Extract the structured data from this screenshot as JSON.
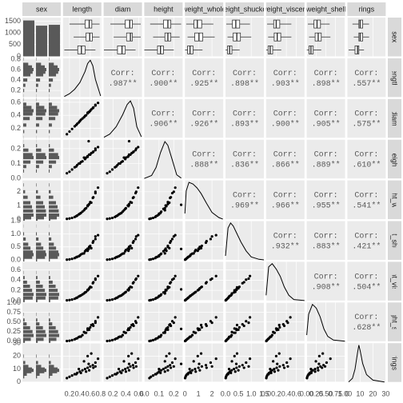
{
  "chart_data": {
    "type": "pairs",
    "variables": [
      "sex",
      "length",
      "diam",
      "height",
      "weight_whole",
      "weight_shucked",
      "weight_viscera",
      "weight_shell",
      "rings"
    ],
    "corr_label": "Corr:",
    "sex_counts": [
      1528,
      1307,
      1342
    ],
    "sex_ylim": [
      0,
      1650
    ],
    "sex_yticks": [
      0,
      500,
      1000,
      1500
    ],
    "correlations": [
      [
        0.987,
        0.9,
        0.925,
        0.898,
        0.903,
        0.898,
        0.557
      ],
      [
        0.906,
        0.926,
        0.893,
        0.9,
        0.905,
        0.575
      ],
      [
        0.888,
        0.836,
        0.866,
        0.889,
        0.61
      ],
      [
        0.969,
        0.966,
        0.955,
        0.541
      ],
      [
        0.932,
        0.883,
        0.421
      ],
      [
        0.908,
        0.504
      ],
      [
        0.628
      ]
    ],
    "correlation_labels": [
      [
        ".987**",
        ".900**",
        ".925**",
        ".898**",
        ".903**",
        ".898**",
        ".557**"
      ],
      [
        ".906**",
        ".926**",
        ".893**",
        ".900**",
        ".905**",
        ".575**"
      ],
      [
        ".888**",
        ".836**",
        ".866**",
        ".889**",
        ".610**"
      ],
      [
        ".969**",
        ".966**",
        ".955**",
        ".541**"
      ],
      [
        ".932**",
        ".883**",
        ".421**"
      ],
      [
        ".908**",
        ".504**"
      ],
      [
        ".628**"
      ]
    ],
    "numeric": [
      {
        "lim": [
          0.075,
          0.815
        ],
        "ticks": [
          0.2,
          0.4,
          0.6,
          0.8
        ],
        "boxes": [
          [
            0.2,
            0.5,
            0.58,
            0.63,
            0.78
          ],
          [
            0.28,
            0.52,
            0.59,
            0.64,
            0.78
          ],
          [
            0.1,
            0.36,
            0.43,
            0.5,
            0.7
          ]
        ],
        "density_x": [
          0.1,
          0.2,
          0.3,
          0.4,
          0.5,
          0.55,
          0.6,
          0.65,
          0.7,
          0.8
        ],
        "density_y": [
          0.05,
          0.3,
          0.7,
          1.3,
          2.3,
          3.0,
          3.3,
          2.8,
          1.6,
          0.1
        ]
      },
      {
        "lim": [
          0.055,
          0.65
        ],
        "ticks": [
          0.2,
          0.4,
          0.6
        ],
        "boxes": [
          [
            0.16,
            0.39,
            0.46,
            0.5,
            0.63
          ],
          [
            0.21,
            0.41,
            0.47,
            0.5,
            0.63
          ],
          [
            0.06,
            0.27,
            0.34,
            0.39,
            0.55
          ]
        ],
        "density_x": [
          0.06,
          0.15,
          0.25,
          0.35,
          0.42,
          0.47,
          0.52,
          0.57,
          0.64
        ],
        "density_y": [
          0.05,
          0.4,
          1.2,
          2.5,
          3.6,
          4.0,
          3.2,
          1.2,
          0.1
        ]
      },
      {
        "lim": [
          0,
          0.26
        ],
        "ticks": [
          {
            "value": 0,
            "label": "0.0"
          },
          0.1,
          0.2
        ],
        "boxes": [
          [
            0.04,
            0.13,
            0.16,
            0.18,
            0.25
          ],
          [
            0.06,
            0.14,
            0.16,
            0.18,
            0.24
          ],
          [
            0,
            0.09,
            0.11,
            0.13,
            0.2
          ]
        ],
        "density_x": [
          0,
          0.05,
          0.08,
          0.11,
          0.14,
          0.16,
          0.19,
          0.22,
          0.25
        ],
        "density_y": [
          0,
          0.8,
          3,
          7,
          10,
          9,
          5,
          1,
          0.1
        ]
      },
      {
        "lim": [
          0,
          2.83
        ],
        "ticks": [
          0,
          1,
          2
        ],
        "boxes": [
          [
            0.1,
            0.67,
            0.92,
            1.24,
            2.1
          ],
          [
            0.2,
            0.73,
            1.04,
            1.32,
            2.2
          ],
          [
            0.01,
            0.2,
            0.38,
            0.6,
            1.3
          ]
        ],
        "density_x": [
          0,
          0.1,
          0.3,
          0.6,
          0.9,
          1.2,
          1.6,
          2.0,
          2.5,
          2.8
        ],
        "density_y": [
          0.1,
          0.5,
          0.65,
          0.62,
          0.55,
          0.45,
          0.28,
          0.12,
          0.03,
          0
        ]
      },
      {
        "lim": [
          0,
          1.49
        ],
        "ticks": [
          {
            "value": 0,
            "label": "0.0"
          },
          0.5,
          {
            "value": 1,
            "label": "1.0"
          },
          1.5
        ],
        "boxes": [
          [
            0.03,
            0.27,
            0.4,
            0.55,
            0.95
          ],
          [
            0.08,
            0.3,
            0.44,
            0.58,
            1.0
          ],
          [
            0.004,
            0.08,
            0.16,
            0.25,
            0.55
          ]
        ],
        "density_x": [
          0,
          0.1,
          0.2,
          0.3,
          0.45,
          0.6,
          0.8,
          1.0,
          1.3,
          1.49
        ],
        "density_y": [
          0.2,
          1.6,
          1.85,
          1.7,
          1.3,
          0.9,
          0.45,
          0.15,
          0.03,
          0
        ]
      },
      {
        "lim": [
          0,
          0.76
        ],
        "ticks": [
          {
            "value": 0,
            "label": "0.0"
          },
          0.2,
          0.4,
          0.6
        ],
        "boxes": [
          [
            0.02,
            0.15,
            0.2,
            0.27,
            0.5
          ],
          [
            0.04,
            0.16,
            0.22,
            0.29,
            0.5
          ],
          [
            0.001,
            0.04,
            0.08,
            0.13,
            0.3
          ]
        ],
        "density_x": [
          0,
          0.05,
          0.12,
          0.2,
          0.28,
          0.36,
          0.45,
          0.55,
          0.76
        ],
        "density_y": [
          0.5,
          3.2,
          3.5,
          3.0,
          2.3,
          1.3,
          0.5,
          0.1,
          0
        ]
      },
      {
        "lim": [
          0,
          1.005
        ],
        "ticks": [
          {
            "value": 0,
            "label": "0.00"
          },
          0.25,
          {
            "value": 0.5,
            "label": "0.50"
          },
          0.75,
          {
            "value": 1,
            "label": "1.00"
          }
        ],
        "boxes": [
          [
            0.03,
            0.19,
            0.27,
            0.36,
            0.6
          ],
          [
            0.06,
            0.22,
            0.3,
            0.38,
            0.62
          ],
          [
            0.002,
            0.06,
            0.11,
            0.17,
            0.38
          ]
        ],
        "density_x": [
          0,
          0.05,
          0.15,
          0.25,
          0.35,
          0.45,
          0.55,
          0.7,
          1.0
        ],
        "density_y": [
          0.5,
          2.2,
          3.0,
          2.7,
          2.0,
          1.0,
          0.4,
          0.1,
          0
        ]
      },
      {
        "lim": [
          0,
          30
        ],
        "ticks": [
          0,
          10,
          20,
          30
        ],
        "boxes": [
          [
            4,
            9,
            10,
            12,
            17
          ],
          [
            5,
            9,
            10,
            12,
            17
          ],
          [
            1,
            6,
            8,
            9,
            13
          ]
        ],
        "density_x": [
          1,
          4,
          6,
          8,
          9,
          10,
          12,
          15,
          20,
          29
        ],
        "density_y": [
          0,
          0.02,
          0.07,
          0.16,
          0.2,
          0.17,
          0.1,
          0.04,
          0.01,
          0
        ]
      }
    ],
    "specimens": [
      [
        0.15,
        0.11,
        0.035,
        0.02,
        0.008,
        0.004,
        0.006,
        3
      ],
      [
        0.2,
        0.15,
        0.045,
        0.05,
        0.02,
        0.01,
        0.015,
        4
      ],
      [
        0.25,
        0.19,
        0.06,
        0.09,
        0.04,
        0.02,
        0.03,
        5
      ],
      [
        0.3,
        0.23,
        0.075,
        0.16,
        0.07,
        0.035,
        0.05,
        6
      ],
      [
        0.35,
        0.27,
        0.09,
        0.27,
        0.12,
        0.06,
        0.08,
        7
      ],
      [
        0.4,
        0.31,
        0.1,
        0.4,
        0.17,
        0.09,
        0.12,
        8
      ],
      [
        0.45,
        0.35,
        0.115,
        0.55,
        0.24,
        0.12,
        0.16,
        9
      ],
      [
        0.5,
        0.39,
        0.13,
        0.75,
        0.33,
        0.16,
        0.22,
        10
      ],
      [
        0.55,
        0.43,
        0.145,
        1.0,
        0.43,
        0.21,
        0.29,
        11
      ],
      [
        0.6,
        0.47,
        0.16,
        1.25,
        0.54,
        0.27,
        0.36,
        12
      ],
      [
        0.65,
        0.51,
        0.175,
        1.55,
        0.66,
        0.34,
        0.44,
        13
      ],
      [
        0.7,
        0.55,
        0.19,
        1.9,
        0.8,
        0.41,
        0.52,
        15
      ],
      [
        0.75,
        0.59,
        0.21,
        2.3,
        0.95,
        0.48,
        0.62,
        18
      ],
      [
        0.48,
        0.37,
        0.14,
        0.65,
        0.25,
        0.14,
        0.24,
        16
      ],
      [
        0.55,
        0.44,
        0.15,
        0.95,
        0.35,
        0.2,
        0.33,
        20
      ],
      [
        0.62,
        0.49,
        0.17,
        1.2,
        0.45,
        0.26,
        0.42,
        22
      ],
      [
        0.58,
        0.45,
        0.16,
        1.1,
        0.5,
        0.24,
        0.3,
        9
      ],
      [
        0.42,
        0.33,
        0.11,
        0.45,
        0.21,
        0.1,
        0.12,
        7
      ],
      [
        0.52,
        0.4,
        0.14,
        0.8,
        0.38,
        0.17,
        0.22,
        8
      ],
      [
        0.66,
        0.52,
        0.18,
        1.6,
        0.72,
        0.36,
        0.4,
        11
      ],
      [
        0.38,
        0.29,
        0.1,
        0.35,
        0.14,
        0.08,
        0.11,
        10
      ],
      [
        0.7,
        0.56,
        0.2,
        2.0,
        0.9,
        0.43,
        0.48,
        12
      ],
      [
        0.57,
        0.45,
        0.25,
        1.05,
        0.42,
        0.22,
        0.32,
        14
      ],
      [
        0.33,
        0.25,
        0.08,
        0.22,
        0.1,
        0.05,
        0.07,
        6
      ]
    ]
  }
}
